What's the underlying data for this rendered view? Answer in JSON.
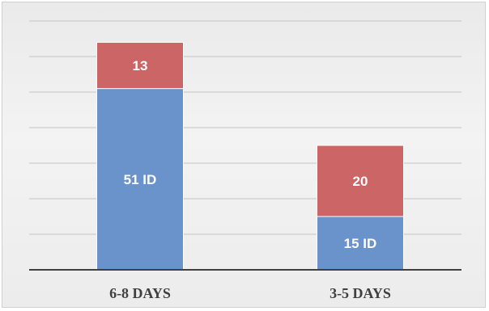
{
  "chart_data": {
    "type": "bar",
    "stacked": true,
    "categories": [
      "6-8 DAYS",
      "3-5 DAYS"
    ],
    "series": [
      {
        "values": [
          51,
          15
        ],
        "labels": [
          "51 ID",
          "15 ID"
        ],
        "color": "#6a93cc"
      },
      {
        "values": [
          13,
          20
        ],
        "labels": [
          "13",
          "20"
        ],
        "color": "#cc6666"
      }
    ],
    "ylim": [
      0,
      70
    ],
    "grid": true,
    "legend": "none",
    "background": "#eeeeee"
  }
}
